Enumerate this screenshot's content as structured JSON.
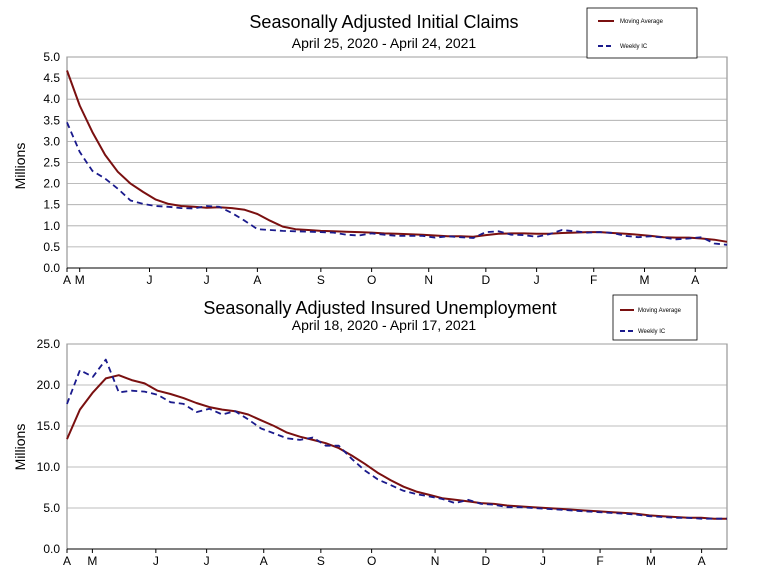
{
  "chart_data": [
    {
      "type": "line",
      "title": "Seasonally Adjusted Initial Claims",
      "subtitle": "April 25, 2020 - April 24, 2021",
      "ylabel": "Millions",
      "xlabel": "",
      "ylim": [
        0,
        5
      ],
      "yticks": [
        "0.0",
        "0.5",
        "1.0",
        "1.5",
        "2.0",
        "2.5",
        "3.0",
        "3.5",
        "4.0",
        "4.5",
        "5.0"
      ],
      "xticks": [
        {
          "label": "A",
          "week": 0
        },
        {
          "label": "M",
          "week": 1
        },
        {
          "label": "J",
          "week": 6.5
        },
        {
          "label": "J",
          "week": 11
        },
        {
          "label": "A",
          "week": 15
        },
        {
          "label": "S",
          "week": 20
        },
        {
          "label": "O",
          "week": 24
        },
        {
          "label": "N",
          "week": 28.5
        },
        {
          "label": "D",
          "week": 33
        },
        {
          "label": "J",
          "week": 37
        },
        {
          "label": "F",
          "week": 41.5
        },
        {
          "label": "M",
          "week": 45.5
        },
        {
          "label": "A",
          "week": 49.5
        }
      ],
      "week_range": [
        0,
        52
      ],
      "grid": true,
      "legend_position": "top-right",
      "series": [
        {
          "name": "Moving Average",
          "color": "#7a1010",
          "style": "solid",
          "values": [
            4.68,
            3.85,
            3.22,
            2.68,
            2.28,
            2.0,
            1.8,
            1.62,
            1.52,
            1.47,
            1.45,
            1.43,
            1.44,
            1.42,
            1.38,
            1.28,
            1.12,
            0.98,
            0.92,
            0.9,
            0.88,
            0.87,
            0.86,
            0.85,
            0.84,
            0.82,
            0.81,
            0.8,
            0.79,
            0.77,
            0.75,
            0.75,
            0.74,
            0.78,
            0.81,
            0.82,
            0.82,
            0.81,
            0.81,
            0.83,
            0.84,
            0.85,
            0.85,
            0.83,
            0.81,
            0.79,
            0.76,
            0.73,
            0.72,
            0.72,
            0.7,
            0.67,
            0.62
          ]
        },
        {
          "name": "Weekly IC",
          "color": "#1a1a8c",
          "style": "dashed",
          "values": [
            3.45,
            2.75,
            2.3,
            2.12,
            1.88,
            1.6,
            1.52,
            1.47,
            1.45,
            1.42,
            1.41,
            1.47,
            1.45,
            1.3,
            1.12,
            0.92,
            0.9,
            0.88,
            0.87,
            0.86,
            0.85,
            0.84,
            0.79,
            0.77,
            0.82,
            0.79,
            0.76,
            0.76,
            0.76,
            0.72,
            0.75,
            0.73,
            0.71,
            0.85,
            0.87,
            0.79,
            0.78,
            0.74,
            0.8,
            0.9,
            0.87,
            0.84,
            0.85,
            0.83,
            0.76,
            0.73,
            0.75,
            0.72,
            0.68,
            0.7,
            0.73,
            0.58,
            0.55
          ]
        }
      ]
    },
    {
      "type": "line",
      "title": "Seasonally Adjusted Insured Unemployment",
      "subtitle": "April 18, 2020 - April 17, 2021",
      "ylabel": "Millions",
      "xlabel": "",
      "ylim": [
        0,
        25
      ],
      "yticks": [
        "0.0",
        "5.0",
        "10.0",
        "15.0",
        "20.0",
        "25.0"
      ],
      "xticks": [
        {
          "label": "A",
          "week": 0
        },
        {
          "label": "M",
          "week": 2
        },
        {
          "label": "J",
          "week": 7
        },
        {
          "label": "J",
          "week": 11
        },
        {
          "label": "A",
          "week": 15.5
        },
        {
          "label": "S",
          "week": 20
        },
        {
          "label": "O",
          "week": 24
        },
        {
          "label": "N",
          "week": 29
        },
        {
          "label": "D",
          "week": 33
        },
        {
          "label": "J",
          "week": 37.5
        },
        {
          "label": "F",
          "week": 42
        },
        {
          "label": "M",
          "week": 46
        },
        {
          "label": "A",
          "week": 50
        }
      ],
      "week_range": [
        0,
        52
      ],
      "grid": true,
      "legend_position": "top-right",
      "series": [
        {
          "name": "Moving Average",
          "color": "#7a1010",
          "style": "solid",
          "values": [
            13.4,
            17.0,
            19.1,
            20.8,
            21.2,
            20.6,
            20.2,
            19.3,
            18.9,
            18.4,
            17.8,
            17.3,
            17.0,
            16.8,
            16.4,
            15.7,
            15.0,
            14.2,
            13.7,
            13.3,
            12.9,
            12.3,
            11.4,
            10.4,
            9.3,
            8.4,
            7.6,
            7.0,
            6.6,
            6.2,
            6.0,
            5.8,
            5.6,
            5.5,
            5.3,
            5.2,
            5.1,
            5.0,
            4.9,
            4.8,
            4.7,
            4.6,
            4.5,
            4.4,
            4.3,
            4.1,
            4.0,
            3.9,
            3.8,
            3.8,
            3.7,
            3.7
          ]
        },
        {
          "name": "Weekly IC",
          "color": "#1a1a8c",
          "style": "dashed",
          "values": [
            17.7,
            21.8,
            21.0,
            23.1,
            19.1,
            19.3,
            19.2,
            18.8,
            17.9,
            17.7,
            16.7,
            17.1,
            16.4,
            16.8,
            15.8,
            14.7,
            14.1,
            13.5,
            13.3,
            13.6,
            12.6,
            12.6,
            11.0,
            9.6,
            8.5,
            7.8,
            7.1,
            6.7,
            6.4,
            6.1,
            5.6,
            6.0,
            5.5,
            5.4,
            5.1,
            5.1,
            5.0,
            4.9,
            4.8,
            4.7,
            4.6,
            4.5,
            4.4,
            4.3,
            4.2,
            4.0,
            3.9,
            3.8,
            3.8,
            3.7,
            3.7,
            3.7
          ]
        }
      ]
    }
  ]
}
